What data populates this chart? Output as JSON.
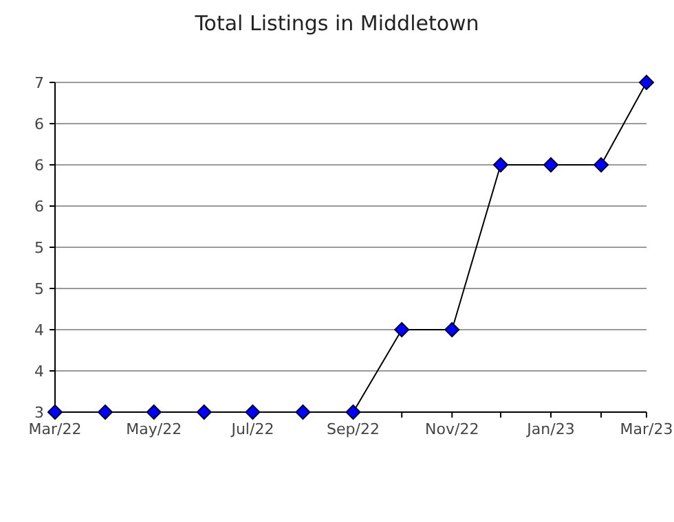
{
  "chart_data": {
    "type": "line",
    "title": "Total Listings in Middletown",
    "x": [
      "2022-03",
      "2022-04",
      "2022-05",
      "2022-06",
      "2022-07",
      "2022-08",
      "2022-09",
      "2022-10",
      "2022-11",
      "2022-12",
      "2023-01",
      "2023-02",
      "2023-03"
    ],
    "series": [
      {
        "color": "#0000ff",
        "values": [
          3,
          3,
          3,
          3,
          3,
          3,
          3,
          4,
          4,
          6,
          6,
          6,
          7
        ]
      }
    ],
    "xlim": [
      "2022-03",
      "2023-03"
    ],
    "xticks": [
      {
        "value": "2022-03",
        "label": "Mar/22"
      },
      {
        "value": "2022-04",
        "label": null
      },
      {
        "value": "2022-05",
        "label": "May/22"
      },
      {
        "value": "2022-06",
        "label": null
      },
      {
        "value": "2022-07",
        "label": "Jul/22"
      },
      {
        "value": "2022-08",
        "label": null
      },
      {
        "value": "2022-09",
        "label": "Sep/22"
      },
      {
        "value": "2022-10",
        "label": null
      },
      {
        "value": "2022-11",
        "label": "Nov/22"
      },
      {
        "value": "2022-12",
        "label": null
      },
      {
        "value": "2023-01",
        "label": "Jan/23"
      },
      {
        "value": "2023-02",
        "label": null
      },
      {
        "value": "2023-03",
        "label": "Mar/23"
      }
    ],
    "ylim": [
      3,
      7
    ],
    "yticks": [
      3,
      {
        "value": 3.5,
        "label": "4"
      },
      4,
      {
        "value": 4.5,
        "label": "5"
      },
      5,
      {
        "value": 5.5,
        "label": "6"
      },
      6,
      {
        "value": 6.5,
        "label": "6"
      },
      7
    ],
    "grid": "y",
    "marker": "diamond",
    "line_style": "solid"
  }
}
